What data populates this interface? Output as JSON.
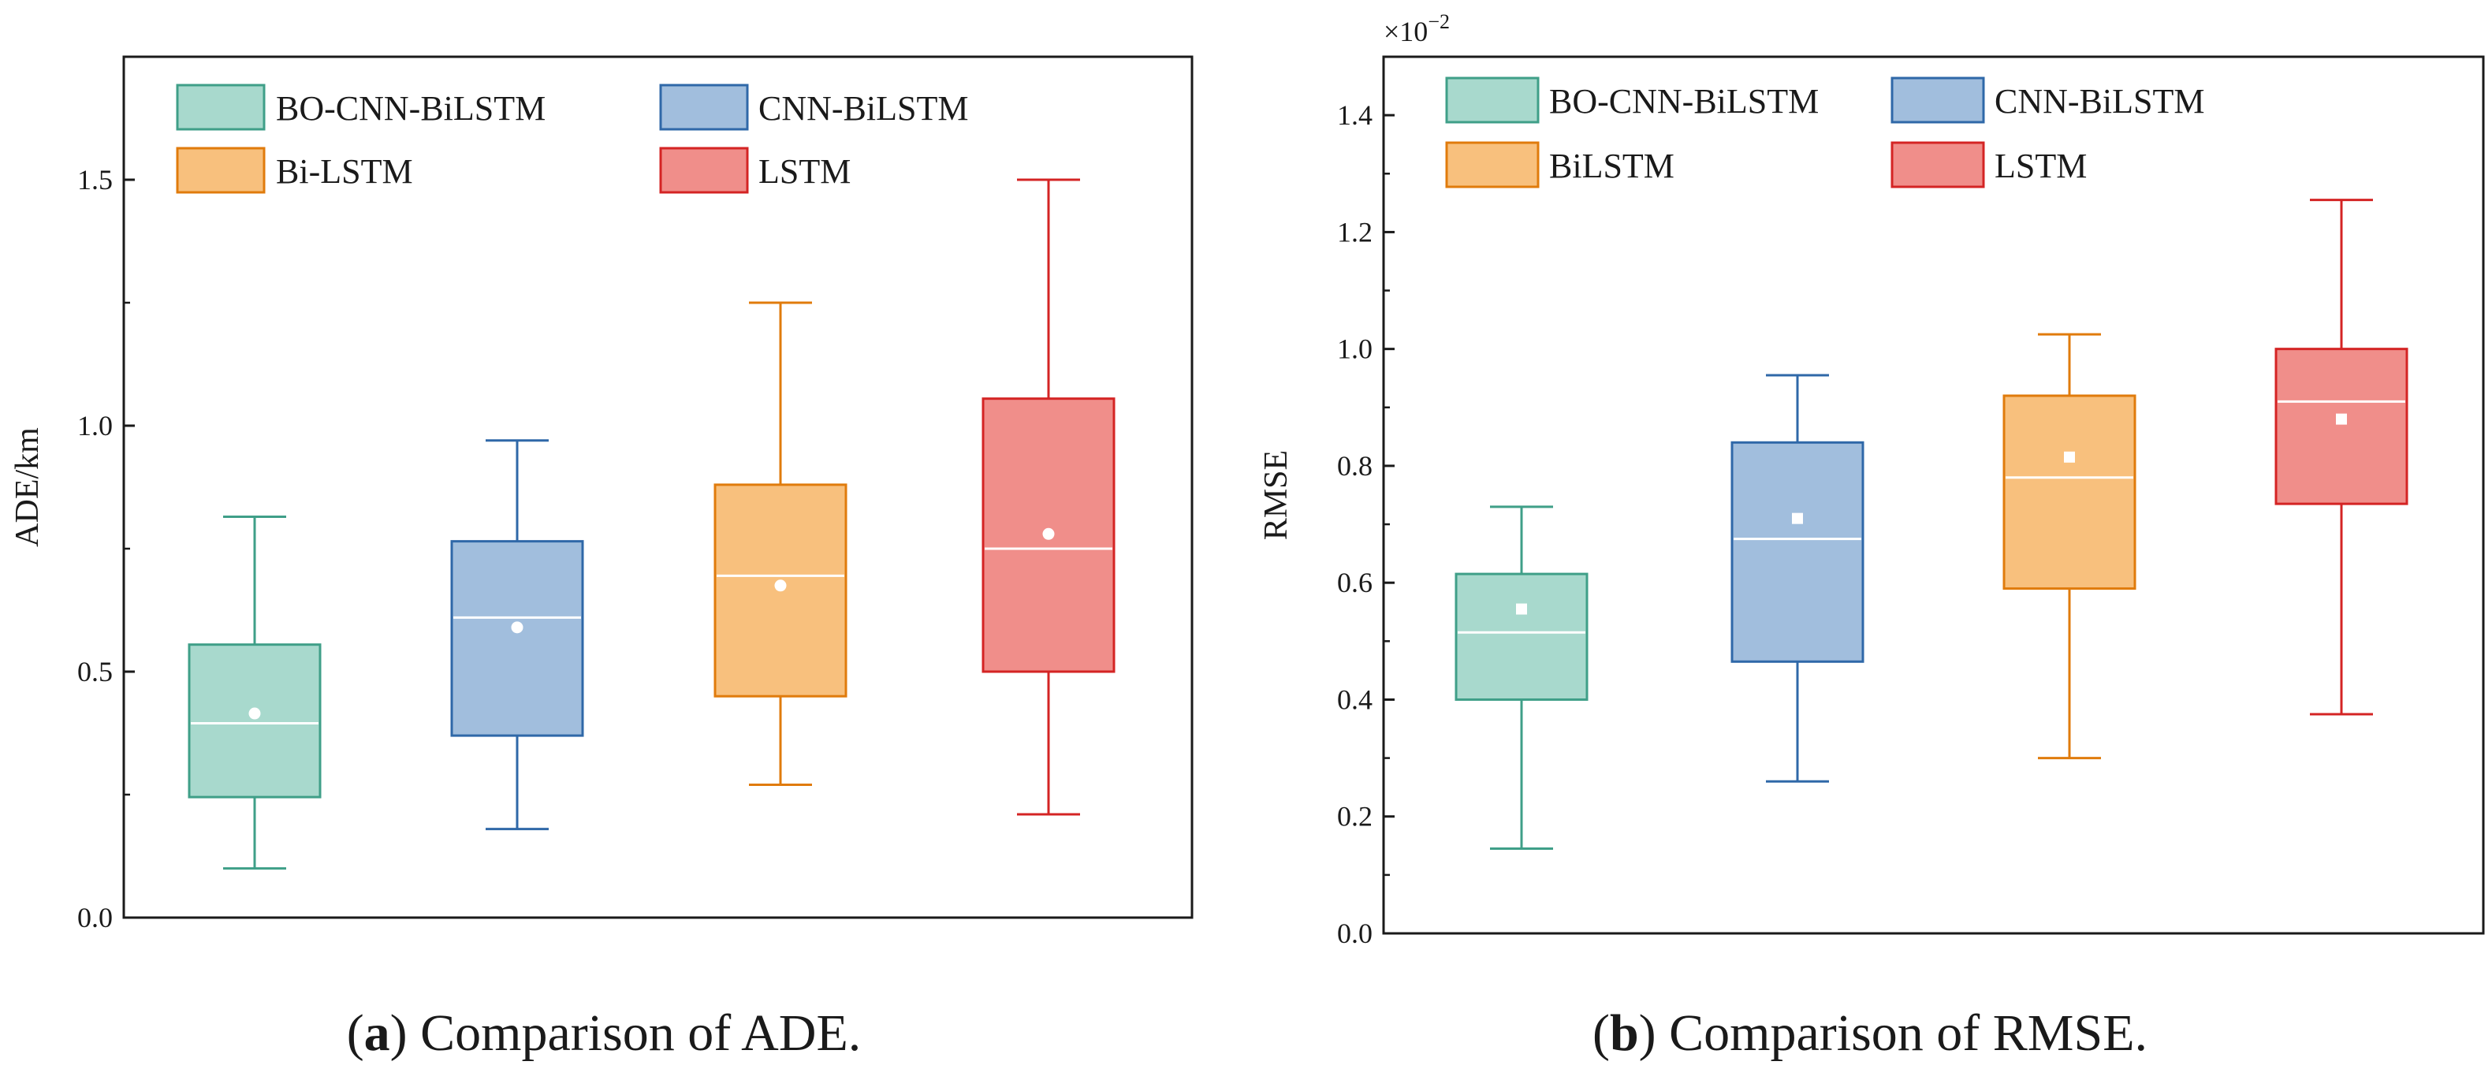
{
  "chart_data": [
    {
      "type": "box",
      "panel_letter": "a",
      "caption": "Comparison of ADE.",
      "ylabel": "ADE/km",
      "xlabel": "",
      "ylim": [
        0,
        1.75
      ],
      "yticks": [
        0.0,
        0.5,
        1.0,
        1.5
      ],
      "ytick_labels": [
        "0.0",
        "0.5",
        "1.0",
        "1.5"
      ],
      "minor_ticks": [
        0.25,
        0.75,
        1.25
      ],
      "grid": false,
      "legend_position": "top",
      "series": [
        {
          "name": "BO-CNN-BiLSTM",
          "color": "#3f9f88",
          "fill": "#a8d9cd",
          "whisker_low": 0.1,
          "q1": 0.245,
          "median": 0.395,
          "q3": 0.555,
          "whisker_high": 0.815,
          "mean": 0.415
        },
        {
          "name": "CNN-BiLSTM",
          "color": "#2f68a8",
          "fill": "#a1bedd",
          "whisker_low": 0.18,
          "q1": 0.37,
          "median": 0.61,
          "q3": 0.765,
          "whisker_high": 0.97,
          "mean": 0.59
        },
        {
          "name": "Bi-LSTM",
          "color": "#e07b0c",
          "fill": "#f8c07d",
          "whisker_low": 0.27,
          "q1": 0.45,
          "median": 0.695,
          "q3": 0.88,
          "whisker_high": 1.25,
          "mean": 0.675
        },
        {
          "name": "LSTM",
          "color": "#d42424",
          "fill": "#f08e8a",
          "whisker_low": 0.21,
          "q1": 0.5,
          "median": 0.75,
          "q3": 1.055,
          "whisker_high": 1.5,
          "mean": 0.78
        }
      ]
    },
    {
      "type": "box",
      "panel_letter": "b",
      "caption": "Comparison of RMSE.",
      "ylabel": "RMSE",
      "xlabel": "",
      "ylim": [
        0,
        1.5
      ],
      "yticks": [
        0.0,
        0.2,
        0.4,
        0.6,
        0.8,
        1.0,
        1.2,
        1.4
      ],
      "ytick_labels": [
        "0.0",
        "0.2",
        "0.4",
        "0.6",
        "0.8",
        "1.0",
        "1.2",
        "1.4"
      ],
      "minor_ticks": [
        0.1,
        0.3,
        0.5,
        0.7,
        0.9,
        1.1,
        1.3
      ],
      "scale_base": "×10",
      "scale_exponent": "−2",
      "grid": false,
      "legend_position": "top",
      "series": [
        {
          "name": "BO-CNN-BiLSTM",
          "color": "#3f9f88",
          "fill": "#a8d9cd",
          "whisker_low": 0.145,
          "q1": 0.4,
          "median": 0.515,
          "q3": 0.615,
          "whisker_high": 0.73,
          "mean": 0.555
        },
        {
          "name": "CNN-BiLSTM",
          "color": "#2f68a8",
          "fill": "#a1bedd",
          "whisker_low": 0.26,
          "q1": 0.465,
          "median": 0.675,
          "q3": 0.84,
          "whisker_high": 0.955,
          "mean": 0.71
        },
        {
          "name": "BiLSTM",
          "color": "#e07b0c",
          "fill": "#f8c07d",
          "whisker_low": 0.3,
          "q1": 0.59,
          "median": 0.78,
          "q3": 0.92,
          "whisker_high": 1.025,
          "mean": 0.815
        },
        {
          "name": "LSTM",
          "color": "#d42424",
          "fill": "#f08e8a",
          "whisker_low": 0.375,
          "q1": 0.735,
          "median": 0.91,
          "q3": 1.0,
          "whisker_high": 1.255,
          "mean": 0.88
        }
      ]
    }
  ]
}
